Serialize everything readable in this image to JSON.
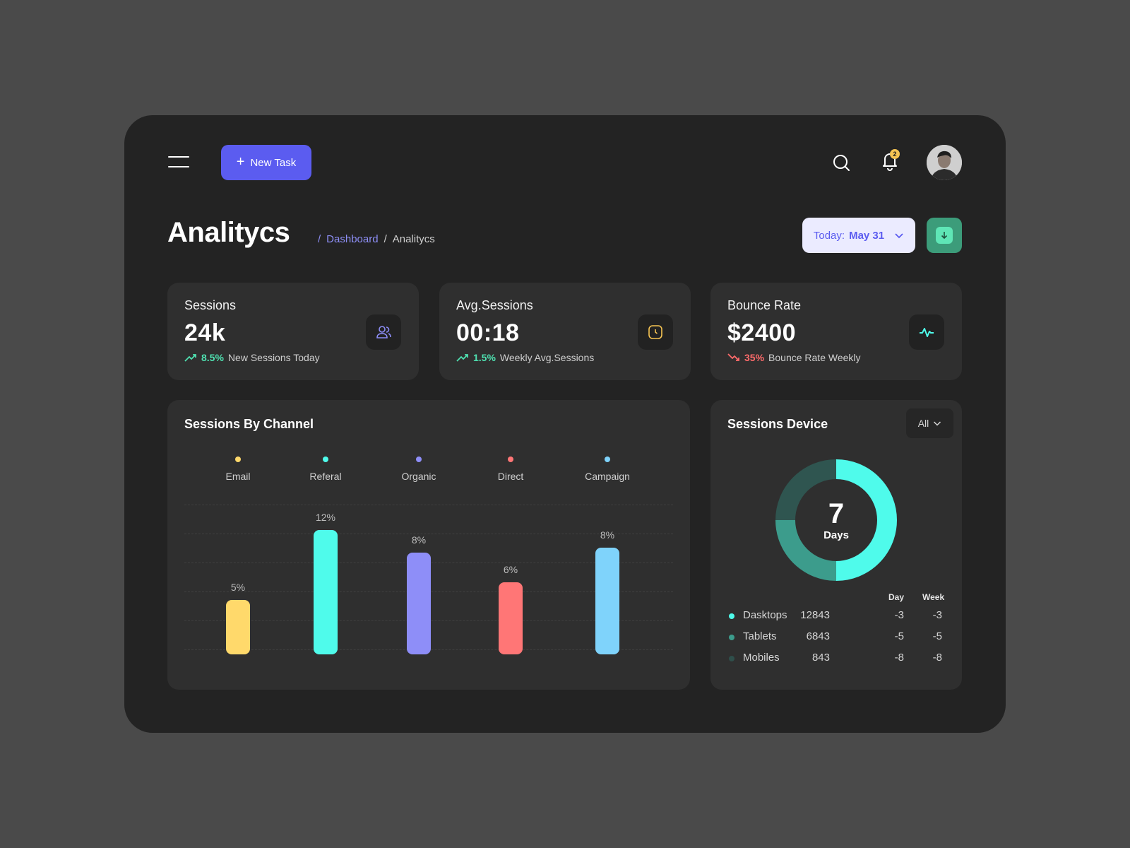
{
  "toolbar": {
    "new_task_label": "New Task",
    "notification_count": "2"
  },
  "page": {
    "title": "Analitycs"
  },
  "breadcrumb": {
    "separator": "/",
    "items": [
      "Dashboard",
      "Analitycs"
    ]
  },
  "date_filter": {
    "prefix": "Today:",
    "value": "May 31"
  },
  "stats": [
    {
      "label": "Sessions",
      "value": "24k",
      "change": "8.5%",
      "trend": "up",
      "caption": "New Sessions Today",
      "icon": "users-icon"
    },
    {
      "label": "Avg.Sessions",
      "value": "00:18",
      "change": "1.5%",
      "trend": "up",
      "caption": "Weekly Avg.Sessions",
      "icon": "clock-icon"
    },
    {
      "label": "Bounce Rate",
      "value": "$2400",
      "change": "35%",
      "trend": "down",
      "caption": "Bounce Rate Weekly",
      "icon": "activity-icon"
    }
  ],
  "channel_chart": {
    "title": "Sessions By Channel",
    "chart_data": {
      "type": "bar",
      "categories": [
        "Email",
        "Referal",
        "Organic",
        "Direct",
        "Campaign"
      ],
      "values": [
        5,
        12,
        8,
        6,
        8
      ],
      "value_labels": [
        "5%",
        "12%",
        "8%",
        "6%",
        "8%"
      ],
      "bar_levels": [
        0.44,
        1.0,
        0.82,
        0.58,
        0.86
      ],
      "colors": [
        "#ffd96b",
        "#4ffbeb",
        "#8e8ef8",
        "#ff7676",
        "#7fd3fb"
      ],
      "grid": true
    }
  },
  "device": {
    "title": "Sessions Device",
    "filter": "All",
    "center_value": "7",
    "center_label": "Days",
    "donut": {
      "type": "pie",
      "values": [
        50,
        25,
        25
      ],
      "colors": [
        "#4ffbeb",
        "#3c9c8c",
        "#2f5550"
      ]
    },
    "columns": [
      "Day",
      "Week"
    ],
    "rows": [
      {
        "name": "Dasktops",
        "count": "12843",
        "day": "-3",
        "week": "-3",
        "color": "#4ffbeb"
      },
      {
        "name": "Tablets",
        "count": "6843",
        "day": "-5",
        "week": "-5",
        "color": "#3c9c8c"
      },
      {
        "name": "Mobiles",
        "count": "843",
        "day": "-8",
        "week": "-8",
        "color": "#2f4f4b"
      }
    ]
  }
}
